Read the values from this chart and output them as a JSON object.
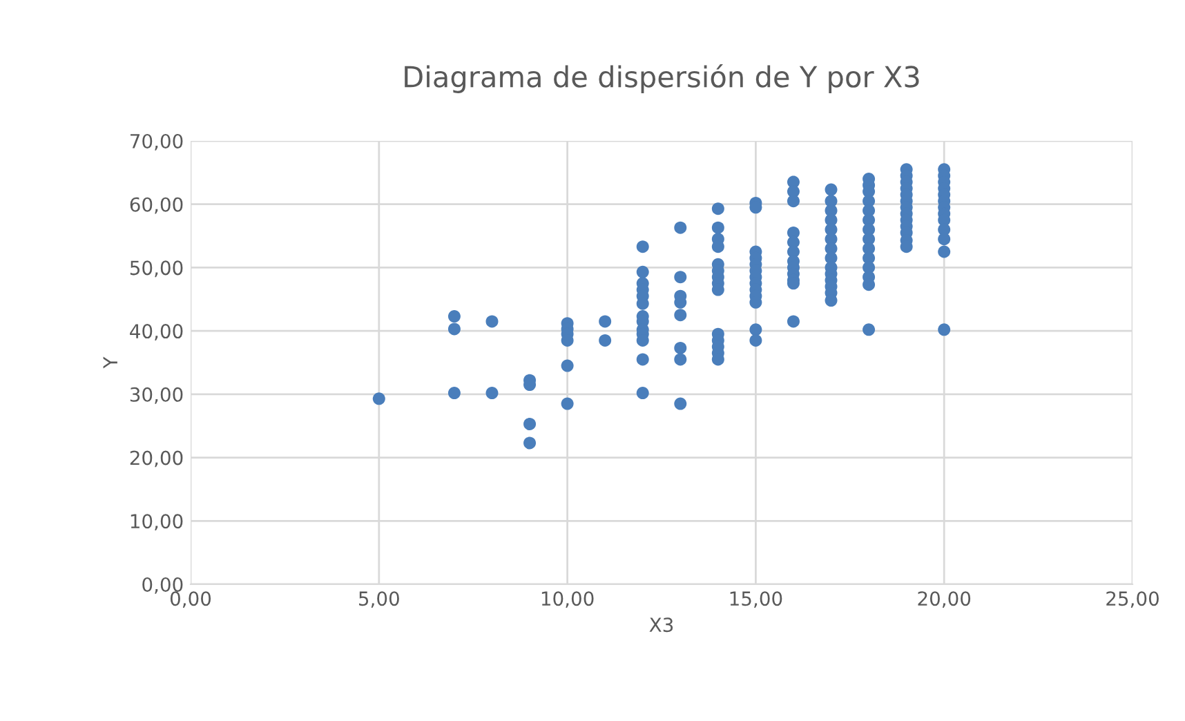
{
  "chart_data": {
    "type": "scatter",
    "title": "Diagrama de dispersión de Y por X3",
    "xlabel": "X3",
    "ylabel": "Y",
    "x": [
      5,
      7,
      7,
      7,
      8,
      8,
      9,
      9,
      9,
      9,
      10,
      10,
      10,
      10,
      10,
      10,
      11,
      11,
      12,
      12,
      12,
      12,
      12,
      12,
      12,
      12,
      12,
      12,
      12,
      12,
      12,
      13,
      13,
      13,
      13,
      13,
      13,
      13,
      13,
      14,
      14,
      14,
      14,
      14,
      14,
      14,
      14,
      14,
      14,
      14,
      14,
      14,
      14,
      15,
      15,
      15,
      15,
      15,
      15,
      15,
      15,
      15,
      15,
      15,
      15,
      15,
      16,
      16,
      16,
      16,
      16,
      16,
      16,
      16,
      16,
      16,
      16,
      16,
      17,
      17,
      17,
      17,
      17,
      17,
      17,
      17,
      17,
      17,
      17,
      17,
      17,
      17,
      18,
      18,
      18,
      18,
      18,
      18,
      18,
      18,
      18,
      18,
      18,
      18,
      18,
      18,
      19,
      19,
      19,
      19,
      19,
      19,
      19,
      19,
      19,
      19,
      19,
      19,
      19,
      20,
      20,
      20,
      20,
      20,
      20,
      20,
      20,
      20,
      20,
      20,
      20,
      20
    ],
    "series": [
      {
        "color": "#4a7ebb",
        "values": [
          29.3,
          42.3,
          40.3,
          30.2,
          41.5,
          30.2,
          32.2,
          31.5,
          25.3,
          22.3,
          41.2,
          40.3,
          39.5,
          38.5,
          34.5,
          28.5,
          41.5,
          38.5,
          53.3,
          49.3,
          47.5,
          46.5,
          45.5,
          44.3,
          42.3,
          41.5,
          40.2,
          39.5,
          38.5,
          35.5,
          30.2,
          56.3,
          48.5,
          45.5,
          44.5,
          42.5,
          37.3,
          35.5,
          28.5,
          59.3,
          56.3,
          54.5,
          53.3,
          50.5,
          49.5,
          48.5,
          47.5,
          46.5,
          39.5,
          38.5,
          37.5,
          36.5,
          35.5,
          60.2,
          59.5,
          52.5,
          51.5,
          50.5,
          49.5,
          48.5,
          47.5,
          46.5,
          45.5,
          44.5,
          40.2,
          38.5,
          63.5,
          62,
          60.5,
          55.5,
          54,
          52.5,
          51,
          50,
          49,
          48,
          47.5,
          41.5,
          62.3,
          60.5,
          59,
          57.5,
          56,
          54.5,
          53,
          51.5,
          50,
          49,
          48,
          47,
          46,
          44.8,
          64,
          63,
          62,
          60.5,
          59,
          57.5,
          56,
          54.5,
          53,
          51.5,
          50,
          48.5,
          47.3,
          40.2,
          65.5,
          64.5,
          63.5,
          62.5,
          61.5,
          60.5,
          59.5,
          58.5,
          57.5,
          56.5,
          55.5,
          54.3,
          53.3,
          65.5,
          64.5,
          63.5,
          62.5,
          61.5,
          60.5,
          59.5,
          58.5,
          57.5,
          56,
          54.5,
          52.5,
          40.2
        ]
      }
    ],
    "xlim": [
      0,
      25
    ],
    "ylim": [
      0,
      70
    ],
    "xticks": [
      {
        "value": 0,
        "label": "0,00"
      },
      {
        "value": 5,
        "label": "5,00"
      },
      {
        "value": 10,
        "label": "10,00"
      },
      {
        "value": 15,
        "label": "15,00"
      },
      {
        "value": 20,
        "label": "20,00"
      },
      {
        "value": 25,
        "label": "25,00"
      }
    ],
    "yticks": [
      {
        "value": 0,
        "label": "0,00"
      },
      {
        "value": 10,
        "label": "10,00"
      },
      {
        "value": 20,
        "label": "20,00"
      },
      {
        "value": 30,
        "label": "30,00"
      },
      {
        "value": 40,
        "label": "40,00"
      },
      {
        "value": 50,
        "label": "50,00"
      },
      {
        "value": 60,
        "label": "60,00"
      },
      {
        "value": 70,
        "label": "70,00"
      }
    ],
    "grid": true,
    "marker": "circle",
    "legend": false
  }
}
